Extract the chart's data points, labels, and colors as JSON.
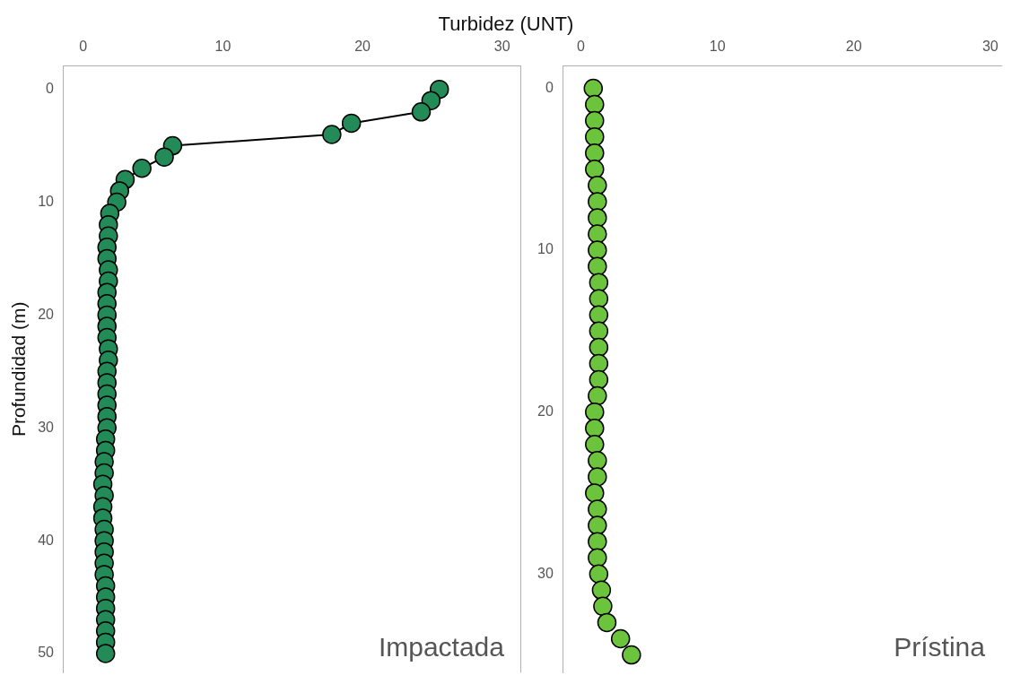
{
  "chart_data": [
    {
      "type": "line",
      "xlabel": "Turbidez (UNT)",
      "ylabel": "Profundidad (m)",
      "annotations": [
        "Impactada"
      ],
      "marker": "circle",
      "line_style": "solid",
      "xlim": [
        -1.4,
        31.3
      ],
      "xticks": [
        0,
        10,
        20,
        30
      ],
      "ylim": [
        51.7,
        -2.1
      ],
      "yticks": [
        0,
        10,
        20,
        30,
        40,
        50
      ],
      "series": [
        {
          "color": "#238b57",
          "x": [
            25.5,
            24.9,
            24.2,
            19.2,
            17.8,
            6.4,
            5.8,
            4.2,
            3.0,
            2.6,
            2.4,
            1.9,
            1.8,
            1.8,
            1.7,
            1.7,
            1.8,
            1.8,
            1.7,
            1.7,
            1.7,
            1.7,
            1.7,
            1.8,
            1.8,
            1.7,
            1.7,
            1.7,
            1.7,
            1.7,
            1.7,
            1.6,
            1.6,
            1.5,
            1.5,
            1.4,
            1.5,
            1.4,
            1.4,
            1.5,
            1.5,
            1.5,
            1.5,
            1.5,
            1.6,
            1.6,
            1.6,
            1.6,
            1.6,
            1.6,
            1.6
          ],
          "values": [
            0,
            1,
            2,
            3,
            4,
            5,
            6,
            7,
            8,
            9,
            10,
            11,
            12,
            13,
            14,
            15,
            16,
            17,
            18,
            19,
            20,
            21,
            22,
            23,
            24,
            25,
            26,
            27,
            28,
            29,
            30,
            31,
            32,
            33,
            34,
            35,
            36,
            37,
            38,
            39,
            40,
            41,
            42,
            43,
            44,
            45,
            46,
            47,
            48,
            49,
            50
          ]
        }
      ]
    },
    {
      "type": "scatter",
      "annotations": [
        "Prístina"
      ],
      "marker": "circle",
      "xlim": [
        -1.3,
        30.8
      ],
      "xticks": [
        0,
        10,
        20,
        30
      ],
      "ylim": [
        36.1,
        -1.4
      ],
      "yticks": [
        0,
        10,
        20,
        30
      ],
      "series": [
        {
          "color": "#6cc43c",
          "x": [
            0.9,
            1.0,
            1.0,
            1.0,
            1.0,
            1.0,
            1.2,
            1.2,
            1.2,
            1.2,
            1.2,
            1.2,
            1.3,
            1.3,
            1.3,
            1.3,
            1.3,
            1.3,
            1.3,
            1.2,
            1.0,
            1.0,
            1.0,
            1.2,
            1.2,
            1.0,
            1.2,
            1.2,
            1.2,
            1.2,
            1.3,
            1.5,
            1.6,
            1.9,
            2.9,
            3.7
          ],
          "values": [
            0,
            1,
            2,
            3,
            4,
            5,
            6,
            7,
            8,
            9,
            10,
            11,
            12,
            13,
            14,
            15,
            16,
            17,
            18,
            19,
            20,
            21,
            22,
            23,
            24,
            25,
            26,
            27,
            28,
            29,
            30,
            31,
            32,
            33,
            34,
            35
          ]
        }
      ]
    }
  ]
}
